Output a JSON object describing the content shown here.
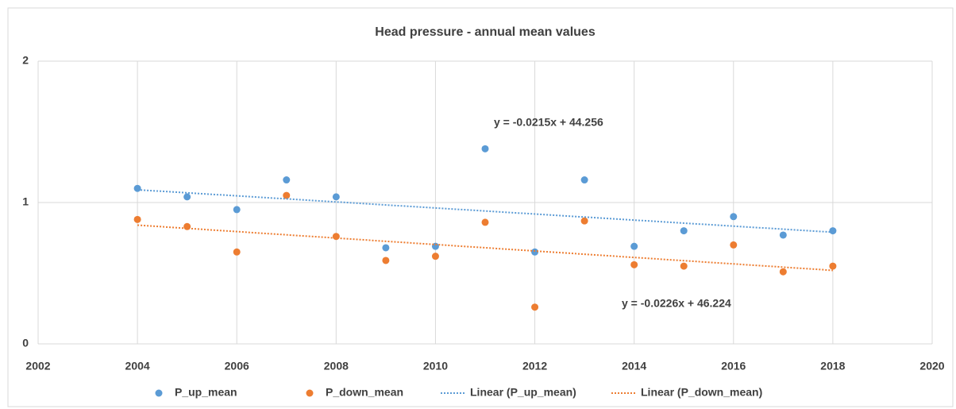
{
  "chart_data": {
    "type": "scatter",
    "title": "Head pressure - annual mean values",
    "xlim": [
      2002,
      2020
    ],
    "xticks": [
      2002,
      2004,
      2006,
      2008,
      2010,
      2012,
      2014,
      2016,
      2018,
      2020
    ],
    "ylim": [
      0,
      2
    ],
    "yticks": [
      0,
      1,
      2
    ],
    "grid": true,
    "legend": "bottom",
    "series": [
      {
        "name": "P_up_mean",
        "color": "#5b9bd5",
        "style": "marker",
        "x": [
          2004,
          2005,
          2006,
          2007,
          2008,
          2009,
          2010,
          2011,
          2012,
          2013,
          2014,
          2015,
          2016,
          2017,
          2018
        ],
        "values": [
          1.1,
          1.04,
          0.95,
          1.16,
          1.04,
          0.68,
          0.69,
          1.38,
          0.65,
          1.16,
          0.69,
          0.8,
          0.9,
          0.77,
          0.8
        ]
      },
      {
        "name": "P_down_mean",
        "color": "#ed7d31",
        "style": "marker",
        "x": [
          2004,
          2005,
          2006,
          2007,
          2008,
          2009,
          2010,
          2011,
          2012,
          2013,
          2014,
          2015,
          2016,
          2017,
          2018
        ],
        "values": [
          0.88,
          0.83,
          0.65,
          1.05,
          0.76,
          0.59,
          0.62,
          0.86,
          0.26,
          0.87,
          0.56,
          0.55,
          0.7,
          0.51,
          0.55
        ]
      },
      {
        "name": "Linear (P_up_mean)",
        "color": "#5b9bd5",
        "style": "dotted-line",
        "x": [
          2004,
          2018
        ],
        "values": [
          1.09,
          0.79
        ]
      },
      {
        "name": "Linear (P_down_mean)",
        "color": "#ed7d31",
        "style": "dotted-line",
        "x": [
          2004,
          2018
        ],
        "values": [
          0.84,
          0.52
        ]
      }
    ],
    "annotations": [
      "y = -0.0215x + 44.256",
      "y = -0.0226x + 46.224"
    ]
  }
}
